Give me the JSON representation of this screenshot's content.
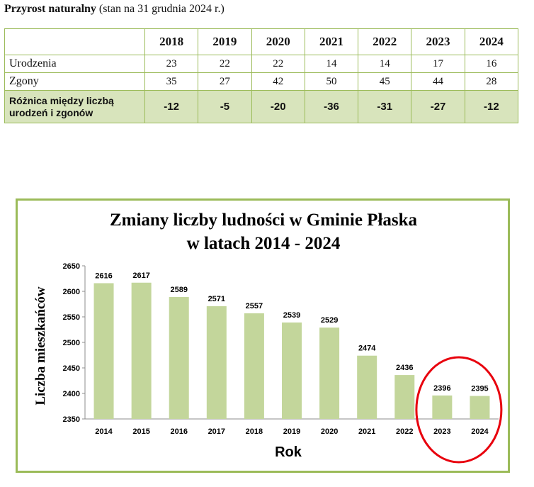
{
  "heading": {
    "bold": "Przyrost naturalny",
    "rest": " (stan na 31 grudnia 2024 r.)"
  },
  "table": {
    "years": [
      "2018",
      "2019",
      "2020",
      "2021",
      "2022",
      "2023",
      "2024"
    ],
    "rows": [
      {
        "label": "Urodzenia",
        "values": [
          "23",
          "22",
          "22",
          "14",
          "14",
          "17",
          "16"
        ]
      },
      {
        "label": "Zgony",
        "values": [
          "35",
          "27",
          "42",
          "50",
          "45",
          "44",
          "28"
        ]
      }
    ],
    "diff": {
      "label_line1": "Różnica między liczbą",
      "label_line2": "urodzeń i zgonów",
      "values": [
        "-12",
        "-5",
        "-20",
        "-36",
        "-31",
        "-27",
        "-12"
      ]
    }
  },
  "chart_data": {
    "type": "bar",
    "title_line1": "Zmiany liczby ludności w Gminie Płaska",
    "title_line2": "w latach 2014 - 2024",
    "xlabel": "Rok",
    "ylabel": "Liczba mieszkańców",
    "categories": [
      "2014",
      "2015",
      "2016",
      "2017",
      "2018",
      "2019",
      "2020",
      "2021",
      "2022",
      "2023",
      "2024"
    ],
    "values": [
      2616,
      2617,
      2589,
      2571,
      2557,
      2539,
      2529,
      2474,
      2436,
      2396,
      2395
    ],
    "ylim": [
      2350,
      2650
    ],
    "yticks": [
      2350,
      2400,
      2450,
      2500,
      2550,
      2600,
      2650
    ],
    "bar_color": "#c3d69b",
    "frame_color": "#9bbb59",
    "highlight_color": "#e8000d",
    "highlighted_categories": [
      "2023",
      "2024"
    ],
    "grid": false,
    "legend": "none"
  }
}
